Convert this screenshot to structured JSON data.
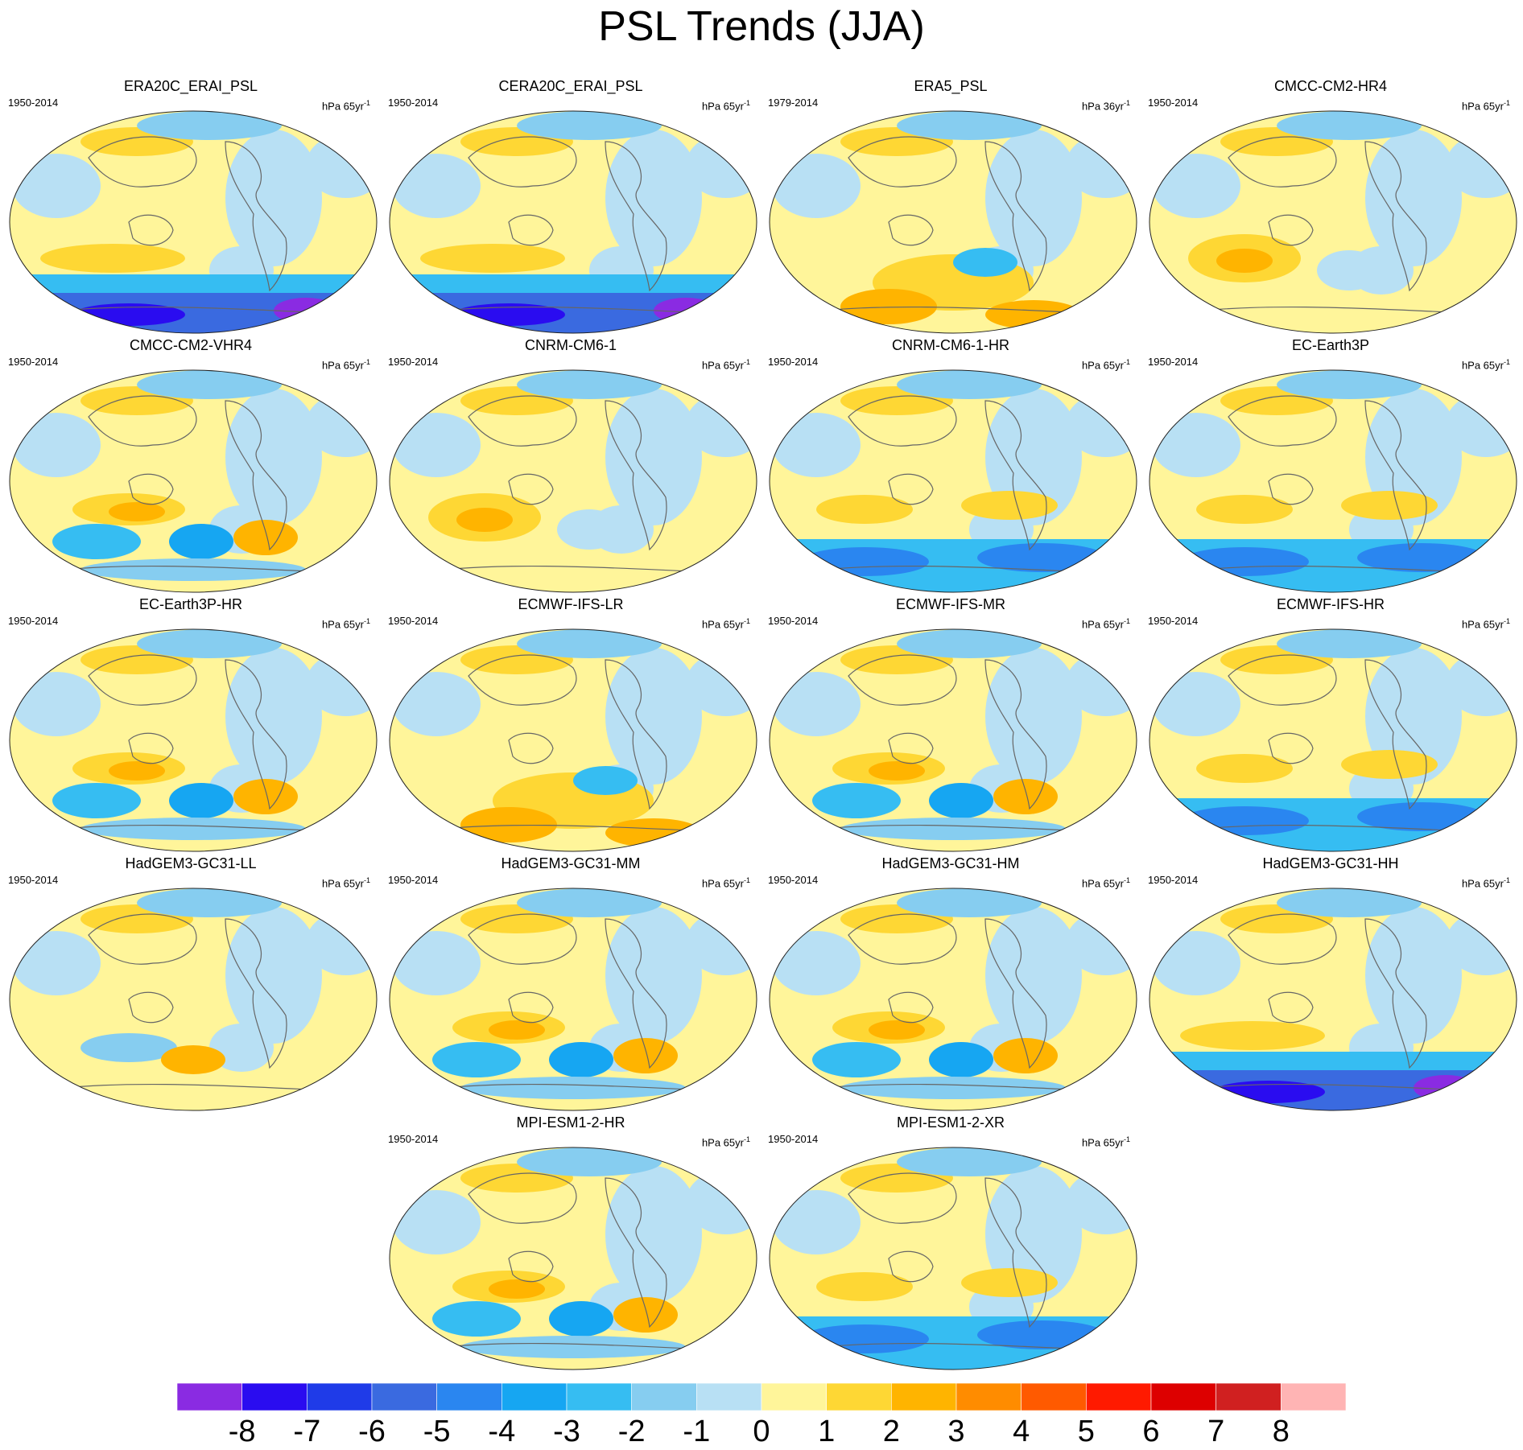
{
  "figure": {
    "title": "PSL Trends (JJA)"
  },
  "panels": [
    {
      "title": "ERA20C_ERAI_PSL",
      "period": "1950-2014",
      "units": "hPa 65yr",
      "units_exp": "-1",
      "south_mode": "strong-negative",
      "row": 0,
      "col": 0
    },
    {
      "title": "CERA20C_ERAI_PSL",
      "period": "1950-2014",
      "units": "hPa 65yr",
      "units_exp": "-1",
      "south_mode": "strong-negative",
      "row": 0,
      "col": 1
    },
    {
      "title": "ERA5_PSL",
      "period": "1979-2014",
      "units": "hPa 36yr",
      "units_exp": "-1",
      "south_mode": "positive-mixed",
      "row": 0,
      "col": 2
    },
    {
      "title": "CMCC-CM2-HR4",
      "period": "1950-2014",
      "units": "hPa 65yr",
      "units_exp": "-1",
      "south_mode": "positive",
      "row": 0,
      "col": 3
    },
    {
      "title": "CMCC-CM2-VHR4",
      "period": "1950-2014",
      "units": "hPa 65yr",
      "units_exp": "-1",
      "south_mode": "mixed",
      "row": 1,
      "col": 0
    },
    {
      "title": "CNRM-CM6-1",
      "period": "1950-2014",
      "units": "hPa 65yr",
      "units_exp": "-1",
      "south_mode": "positive",
      "row": 1,
      "col": 1
    },
    {
      "title": "CNRM-CM6-1-HR",
      "period": "1950-2014",
      "units": "hPa 65yr",
      "units_exp": "-1",
      "south_mode": "negative",
      "row": 1,
      "col": 2
    },
    {
      "title": "EC-Earth3P",
      "period": "1950-2014",
      "units": "hPa 65yr",
      "units_exp": "-1",
      "south_mode": "negative",
      "row": 1,
      "col": 3
    },
    {
      "title": "EC-Earth3P-HR",
      "period": "1950-2014",
      "units": "hPa 65yr",
      "units_exp": "-1",
      "south_mode": "mixed",
      "row": 2,
      "col": 0
    },
    {
      "title": "ECMWF-IFS-LR",
      "period": "1950-2014",
      "units": "hPa 65yr",
      "units_exp": "-1",
      "south_mode": "positive-mixed",
      "row": 2,
      "col": 1
    },
    {
      "title": "ECMWF-IFS-MR",
      "period": "1950-2014",
      "units": "hPa 65yr",
      "units_exp": "-1",
      "south_mode": "mixed",
      "row": 2,
      "col": 2
    },
    {
      "title": "ECMWF-IFS-HR",
      "period": "1950-2014",
      "units": "hPa 65yr",
      "units_exp": "-1",
      "south_mode": "negative",
      "row": 2,
      "col": 3
    },
    {
      "title": "HadGEM3-GC31-LL",
      "period": "1950-2014",
      "units": "hPa 65yr",
      "units_exp": "-1",
      "south_mode": "weak",
      "row": 3,
      "col": 0
    },
    {
      "title": "HadGEM3-GC31-MM",
      "period": "1950-2014",
      "units": "hPa 65yr",
      "units_exp": "-1",
      "south_mode": "mixed",
      "row": 3,
      "col": 1
    },
    {
      "title": "HadGEM3-GC31-HM",
      "period": "1950-2014",
      "units": "hPa 65yr",
      "units_exp": "-1",
      "south_mode": "mixed",
      "row": 3,
      "col": 2
    },
    {
      "title": "HadGEM3-GC31-HH",
      "period": "1950-2014",
      "units": "hPa 65yr",
      "units_exp": "-1",
      "south_mode": "strong-negative",
      "row": 3,
      "col": 3
    },
    {
      "title": "MPI-ESM1-2-HR",
      "period": "1950-2014",
      "units": "hPa 65yr",
      "units_exp": "-1",
      "south_mode": "mixed",
      "row": 4,
      "col": 1
    },
    {
      "title": "MPI-ESM1-2-XR",
      "period": "1950-2014",
      "units": "hPa 65yr",
      "units_exp": "-1",
      "south_mode": "negative",
      "row": 4,
      "col": 2
    }
  ],
  "colorbar": {
    "levels": [
      "-8",
      "-7",
      "-6",
      "-5",
      "-4",
      "-3",
      "-2",
      "-1",
      "0",
      "1",
      "2",
      "3",
      "4",
      "5",
      "6",
      "7",
      "8"
    ],
    "colors": [
      "#8a2be2",
      "#2a0cf0",
      "#1f3be8",
      "#3a6ae0",
      "#2a86f0",
      "#16a6f2",
      "#36bdf2",
      "#86cdf0",
      "#b8e0f4",
      "#fff59a",
      "#fed734",
      "#ffb400",
      "#ff8c00",
      "#ff5a00",
      "#ff1a00",
      "#dd0000",
      "#d02020",
      "#ffb4b4"
    ]
  },
  "map_colors": {
    "land_outline": "#666666",
    "globe_outline": "#222222"
  }
}
